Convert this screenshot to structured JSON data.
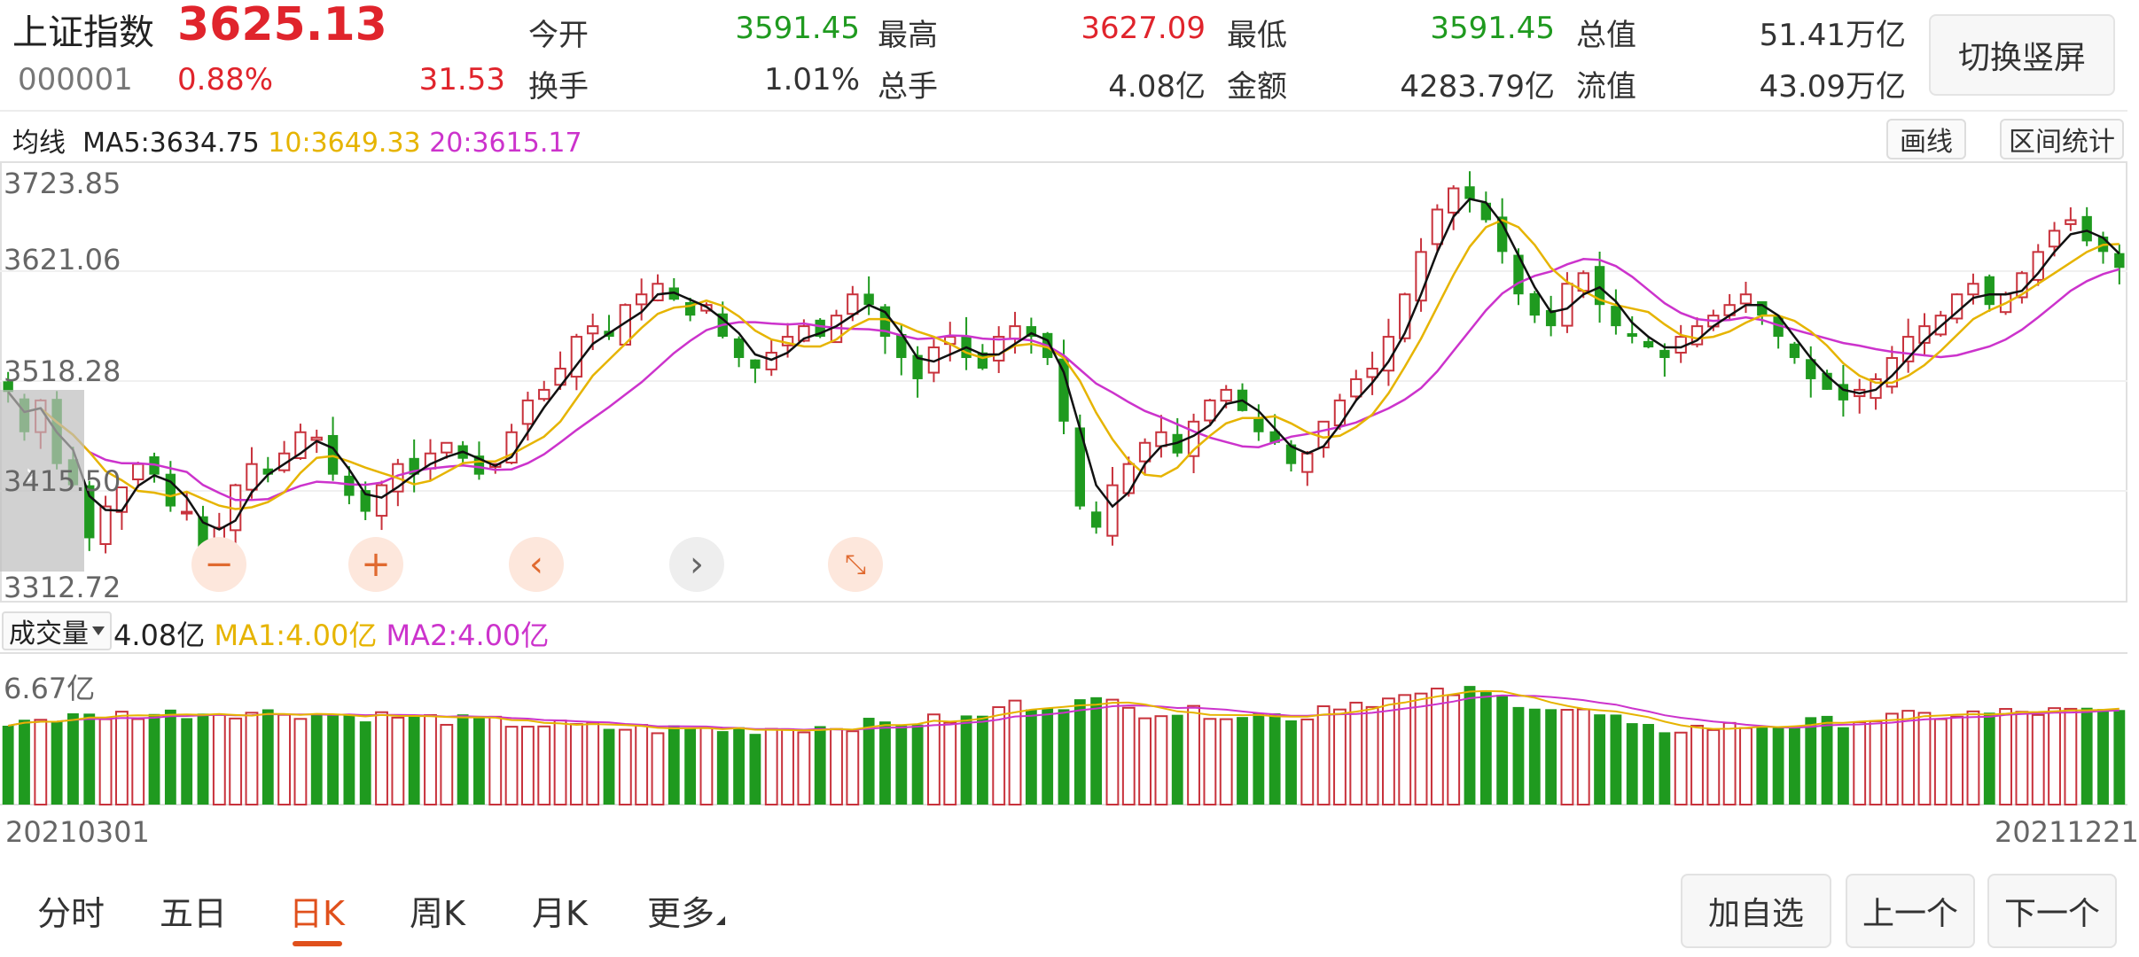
{
  "header": {
    "index_name": "上证指数",
    "price": "3625.13",
    "code": "000001",
    "change_pct": "0.88%",
    "change": "31.53",
    "stats": [
      {
        "label": "今开",
        "value": "3591.45",
        "color": "#1f9a1f"
      },
      {
        "label": "最高",
        "value": "3627.09",
        "color": "#e0242c"
      },
      {
        "label": "最低",
        "value": "3591.45",
        "color": "#1f9a1f"
      },
      {
        "label": "总值",
        "value": "51.41万亿",
        "color": "#333333"
      },
      {
        "label": "换手",
        "value": "1.01%",
        "color": "#333333"
      },
      {
        "label": "总手",
        "value": "4.08亿",
        "color": "#333333"
      },
      {
        "label": "金额",
        "value": "4283.79亿",
        "color": "#333333"
      },
      {
        "label": "流值",
        "value": "43.09万亿",
        "color": "#333333"
      }
    ],
    "switch_button": "切换竖屏"
  },
  "ma_bar": {
    "title": "均线",
    "ma5": "MA5:3634.75",
    "ma10": "10:3649.33",
    "ma20": "20:3615.17",
    "draw_button": "画线",
    "range_button": "区间统计"
  },
  "main_chart": {
    "y_labels": [
      "3723.85",
      "3621.06",
      "3518.28",
      "3415.50",
      "3312.72"
    ],
    "zoom_controls": [
      "zoom-out-icon",
      "zoom-in-icon",
      "chevron-left-icon",
      "chevron-right-icon",
      "compress-icon"
    ]
  },
  "volume_bar": {
    "dropdown": "成交量",
    "volume": "4.08亿",
    "ma1": "MA1:4.00亿",
    "ma2": "MA2:4.00亿",
    "y_label": "6.67亿"
  },
  "date_axis": {
    "start": "20210301",
    "end": "20211221"
  },
  "tabs": [
    {
      "label": "分时",
      "active": false
    },
    {
      "label": "五日",
      "active": false
    },
    {
      "label": "日K",
      "active": true
    },
    {
      "label": "周K",
      "active": false
    },
    {
      "label": "月K",
      "active": false
    },
    {
      "label": "更多",
      "active": false
    }
  ],
  "bottom_buttons": {
    "add_watch": "加自选",
    "prev": "上一个",
    "next": "下一个"
  },
  "colors": {
    "up": "#c8323c",
    "down": "#1f9a1f",
    "ma5": "#111111",
    "ma10": "#e6b400",
    "ma20": "#cc33cc",
    "accent": "#e0501c"
  },
  "chart_data": {
    "type": "candlestick",
    "ylim": [
      3312.72,
      3723.85
    ],
    "x_range": [
      "20210301",
      "20211221"
    ],
    "closes": [
      3508,
      3470,
      3500,
      3440,
      3420,
      3370,
      3400,
      3418,
      3440,
      3430,
      3400,
      3395,
      3360,
      3380,
      3420,
      3440,
      3430,
      3450,
      3470,
      3465,
      3430,
      3410,
      3395,
      3420,
      3440,
      3430,
      3450,
      3460,
      3445,
      3430,
      3440,
      3470,
      3500,
      3510,
      3530,
      3560,
      3570,
      3560,
      3590,
      3600,
      3610,
      3595,
      3580,
      3590,
      3560,
      3540,
      3530,
      3545,
      3560,
      3570,
      3560,
      3580,
      3600,
      3590,
      3560,
      3540,
      3520,
      3550,
      3560,
      3540,
      3530,
      3560,
      3570,
      3560,
      3540,
      3480,
      3400,
      3380,
      3420,
      3440,
      3460,
      3470,
      3450,
      3480,
      3500,
      3510,
      3490,
      3470,
      3460,
      3440,
      3450,
      3480,
      3500,
      3520,
      3530,
      3560,
      3600,
      3640,
      3680,
      3700,
      3690,
      3670,
      3640,
      3600,
      3580,
      3570,
      3610,
      3620,
      3590,
      3570,
      3560,
      3550,
      3540,
      3560,
      3570,
      3580,
      3590,
      3600,
      3580,
      3560,
      3540,
      3520,
      3510,
      3500,
      3510,
      3520,
      3540,
      3560,
      3570,
      3580,
      3600,
      3610,
      3590,
      3600,
      3620,
      3640,
      3660,
      3670,
      3650,
      3640,
      3625
    ],
    "ma5_last": 3634.75,
    "ma10_last": 3649.33,
    "ma20_last": 3615.17,
    "volume_max": 6.67,
    "volume_last": 4.08,
    "volume_ma1": 4.0,
    "volume_ma2": 4.0,
    "volume_unit": "亿"
  }
}
